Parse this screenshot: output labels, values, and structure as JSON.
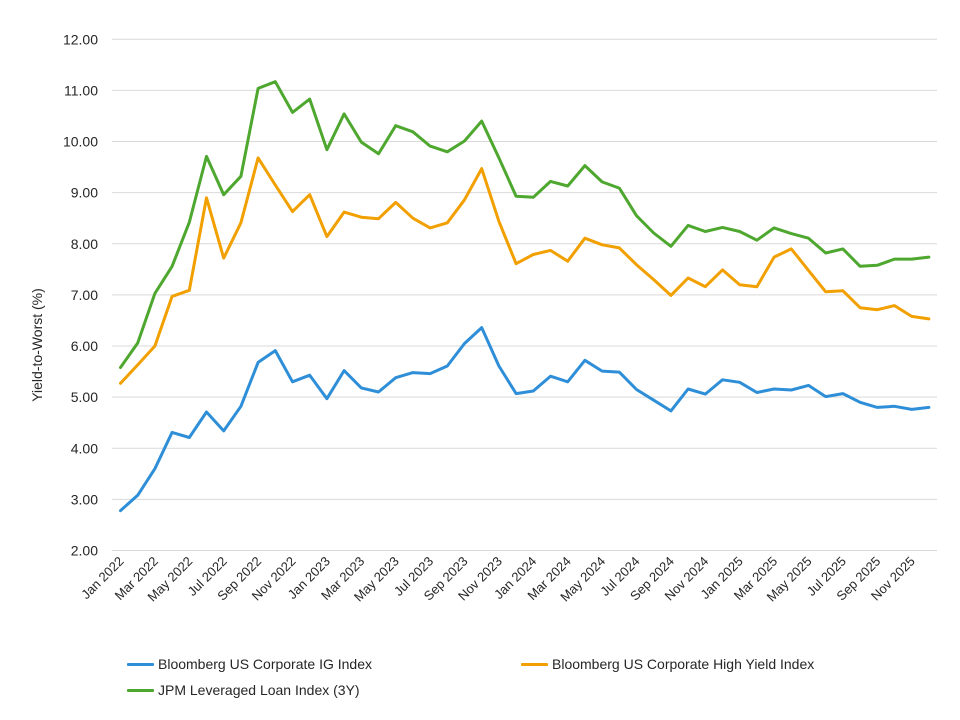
{
  "chart_data": {
    "type": "line",
    "title": "",
    "xlabel": "",
    "ylabel": "Yield-to-Worst (%)",
    "ylim": [
      2,
      12
    ],
    "yticks": [
      "2.00",
      "3.00",
      "4.00",
      "5.00",
      "6.00",
      "7.00",
      "8.00",
      "9.00",
      "10.00",
      "11.00",
      "12.00"
    ],
    "grid": true,
    "legend_position": "bottom",
    "x": [
      "Jan 2022",
      "Feb 2022",
      "Mar 2022",
      "Apr 2022",
      "May 2022",
      "Jun 2022",
      "Jul 2022",
      "Aug 2022",
      "Sep 2022",
      "Oct 2022",
      "Nov 2022",
      "Dec 2022",
      "Jan 2023",
      "Feb 2023",
      "Mar 2023",
      "Apr 2023",
      "May 2023",
      "Jun 2023",
      "Jul 2023",
      "Aug 2023",
      "Sep 2023",
      "Oct 2023",
      "Nov 2023",
      "Dec 2023",
      "Jan 2024",
      "Feb 2024",
      "Mar 2024",
      "Apr 2024",
      "May 2024",
      "Jun 2024",
      "Jul 2024",
      "Aug 2024",
      "Sep 2024",
      "Oct 2024",
      "Nov 2024",
      "Dec 2024",
      "Jan 2025",
      "Feb 2025",
      "Mar 2025",
      "Apr 2025",
      "May 2025",
      "Jun 2025",
      "Jul 2025",
      "Aug 2025",
      "Sep 2025",
      "Oct 2025",
      "Nov 2025",
      "Dec 2025"
    ],
    "xtick_labels": [
      "Jan 2022",
      "Mar 2022",
      "May 2022",
      "Jul 2022",
      "Sep 2022",
      "Nov 2022",
      "Jan 2023",
      "Mar 2023",
      "May 2023",
      "Jul 2023",
      "Sep 2023",
      "Nov 2023",
      "Jan 2024",
      "Mar 2024",
      "May 2024",
      "Jul 2024",
      "Sep 2024",
      "Nov 2024",
      "Jan 2025",
      "Mar 2025",
      "May 2025",
      "Jul 2025",
      "Sep 2025",
      "Nov 2025"
    ],
    "series": [
      {
        "name": "Bloomberg US Corporate IG Index",
        "color": "#2E8FD8",
        "values": [
          2.78,
          3.08,
          3.6,
          4.31,
          4.21,
          4.71,
          4.34,
          4.82,
          5.68,
          5.91,
          5.3,
          5.43,
          4.97,
          5.52,
          5.18,
          5.1,
          5.38,
          5.48,
          5.46,
          5.61,
          6.05,
          6.36,
          5.61,
          5.07,
          5.12,
          5.41,
          5.3,
          5.72,
          5.51,
          5.49,
          5.15,
          4.94,
          4.73,
          5.16,
          5.06,
          5.34,
          5.29,
          5.09,
          5.16,
          5.14,
          5.23,
          5.01,
          5.07,
          4.9,
          4.8,
          4.82,
          4.76,
          4.8
        ]
      },
      {
        "name": "Bloomberg US Corporate High Yield Index",
        "color": "#F2A000",
        "values": [
          5.27,
          5.63,
          6.0,
          6.97,
          7.09,
          8.9,
          7.72,
          8.41,
          9.68,
          9.15,
          8.63,
          8.96,
          8.14,
          8.62,
          8.52,
          8.49,
          8.81,
          8.5,
          8.31,
          8.41,
          8.86,
          9.47,
          8.44,
          7.61,
          7.79,
          7.87,
          7.66,
          8.11,
          7.98,
          7.92,
          7.59,
          7.3,
          6.99,
          7.33,
          7.16,
          7.49,
          7.2,
          7.16,
          7.74,
          7.9,
          7.48,
          7.06,
          7.08,
          6.75,
          6.71,
          6.79,
          6.58,
          6.53
        ]
      },
      {
        "name": "JPM Leveraged Loan Index (3Y)",
        "color": "#4EA72E",
        "values": [
          5.58,
          6.06,
          7.03,
          7.56,
          8.42,
          9.71,
          8.96,
          9.32,
          11.04,
          11.17,
          10.57,
          10.83,
          9.84,
          10.54,
          9.99,
          9.76,
          10.31,
          10.19,
          9.91,
          9.8,
          10.01,
          10.4,
          9.68,
          8.93,
          8.91,
          9.22,
          9.13,
          9.53,
          9.21,
          9.09,
          8.55,
          8.21,
          7.95,
          8.36,
          8.24,
          8.32,
          8.24,
          8.07,
          8.31,
          8.2,
          8.11,
          7.82,
          7.9,
          7.56,
          7.58,
          7.7,
          7.7,
          7.74
        ]
      }
    ]
  }
}
